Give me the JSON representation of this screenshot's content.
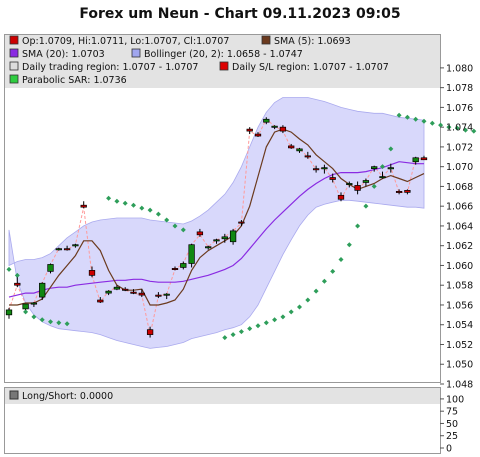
{
  "title": "Forex um Neun - Chart 09.11.2023 09:05",
  "legend": [
    {
      "text": "Op:1.0709, Hi:1.0711, Lo:1.0707, Cl:1.0707",
      "color": "#cc0000"
    },
    {
      "text": "SMA (5): 1.0693",
      "color": "#6b3a1e"
    },
    {
      "text": "SMA (20): 1.0703",
      "color": "#8a2be2"
    },
    {
      "text": "Bollinger (20, 2): 1.0658 - 1.0747",
      "color": "#a0a6ee"
    },
    {
      "text": "Daily trading region: 1.0707 - 1.0707",
      "color": "#dddddd"
    },
    {
      "text": "Daily S/L region: 1.0707 - 1.0707",
      "color": "#dd0000"
    },
    {
      "text": "Parabolic SAR: 1.0736",
      "color": "#2ecc40"
    }
  ],
  "lower_legend": {
    "text": "Long/Short: 0.0000",
    "color": "#777777"
  },
  "colors": {
    "up": "#118811",
    "down": "#cc0000",
    "sma5": "#6b3a1e",
    "sma20": "#8a2be2",
    "band_fill": "#d8d8fb",
    "band_line": "#aaaaee",
    "sar": "#2e9e5a",
    "connector": "#ff9a9a",
    "header_bg": "#e3e3e3",
    "frame": "#999999"
  },
  "chart_data": [
    {
      "type": "candlestick",
      "y_range": [
        1.048,
        1.081
      ],
      "y_ticks": [
        "1.048",
        "1.050",
        "1.052",
        "1.054",
        "1.056",
        "1.058",
        "1.060",
        "1.062",
        "1.064",
        "1.066",
        "1.068",
        "1.070",
        "1.072",
        "1.074",
        "1.076",
        "1.078",
        "1.080"
      ],
      "candles": [
        {
          "o": 1.055,
          "h": 1.0557,
          "l": 1.0546,
          "c": 1.0555
        },
        {
          "o": 1.0582,
          "h": 1.0588,
          "l": 1.0578,
          "c": 1.058
        },
        {
          "o": 1.0556,
          "h": 1.0561,
          "l": 1.0555,
          "c": 1.0561
        },
        {
          "o": 1.0561,
          "h": 1.0563,
          "l": 1.0558,
          "c": 1.0562
        },
        {
          "o": 1.0568,
          "h": 1.0583,
          "l": 1.0565,
          "c": 1.0582
        },
        {
          "o": 1.0594,
          "h": 1.0602,
          "l": 1.0592,
          "c": 1.0601
        },
        {
          "o": 1.0616,
          "h": 1.0618,
          "l": 1.0615,
          "c": 1.0617
        },
        {
          "o": 1.0617,
          "h": 1.062,
          "l": 1.0615,
          "c": 1.0616
        },
        {
          "o": 1.062,
          "h": 1.0622,
          "l": 1.0618,
          "c": 1.0621
        },
        {
          "o": 1.0661,
          "h": 1.0665,
          "l": 1.0658,
          "c": 1.0659
        },
        {
          "o": 1.0595,
          "h": 1.0599,
          "l": 1.0588,
          "c": 1.059
        },
        {
          "o": 1.0565,
          "h": 1.0568,
          "l": 1.0562,
          "c": 1.0563
        },
        {
          "o": 1.0572,
          "h": 1.0575,
          "l": 1.057,
          "c": 1.0574
        },
        {
          "o": 1.0576,
          "h": 1.058,
          "l": 1.0575,
          "c": 1.0578
        },
        {
          "o": 1.0576,
          "h": 1.0578,
          "l": 1.0574,
          "c": 1.0575
        },
        {
          "o": 1.0573,
          "h": 1.0576,
          "l": 1.0571,
          "c": 1.0572
        },
        {
          "o": 1.0572,
          "h": 1.0576,
          "l": 1.0568,
          "c": 1.057
        },
        {
          "o": 1.0535,
          "h": 1.0538,
          "l": 1.0527,
          "c": 1.053
        },
        {
          "o": 1.057,
          "h": 1.0573,
          "l": 1.0567,
          "c": 1.0569
        },
        {
          "o": 1.057,
          "h": 1.0572,
          "l": 1.0566,
          "c": 1.0571
        },
        {
          "o": 1.0597,
          "h": 1.0599,
          "l": 1.0595,
          "c": 1.0596
        },
        {
          "o": 1.0598,
          "h": 1.0604,
          "l": 1.0596,
          "c": 1.0602
        },
        {
          "o": 1.0602,
          "h": 1.0622,
          "l": 1.0598,
          "c": 1.0621
        },
        {
          "o": 1.0634,
          "h": 1.0637,
          "l": 1.0629,
          "c": 1.0631
        },
        {
          "o": 1.0618,
          "h": 1.062,
          "l": 1.0616,
          "c": 1.0619
        },
        {
          "o": 1.0625,
          "h": 1.0627,
          "l": 1.0622,
          "c": 1.0626
        },
        {
          "o": 1.0627,
          "h": 1.0632,
          "l": 1.0623,
          "c": 1.0629
        },
        {
          "o": 1.0624,
          "h": 1.0637,
          "l": 1.0621,
          "c": 1.0635
        },
        {
          "o": 1.0644,
          "h": 1.0646,
          "l": 1.064,
          "c": 1.0643
        },
        {
          "o": 1.0738,
          "h": 1.074,
          "l": 1.0733,
          "c": 1.0736
        },
        {
          "o": 1.0733,
          "h": 1.0735,
          "l": 1.073,
          "c": 1.0731
        },
        {
          "o": 1.0745,
          "h": 1.075,
          "l": 1.0743,
          "c": 1.0748
        },
        {
          "o": 1.074,
          "h": 1.0742,
          "l": 1.0738,
          "c": 1.0741
        },
        {
          "o": 1.074,
          "h": 1.0742,
          "l": 1.0734,
          "c": 1.0736
        },
        {
          "o": 1.0721,
          "h": 1.0723,
          "l": 1.0718,
          "c": 1.0719
        },
        {
          "o": 1.0716,
          "h": 1.0719,
          "l": 1.0714,
          "c": 1.0718
        },
        {
          "o": 1.0711,
          "h": 1.0715,
          "l": 1.0708,
          "c": 1.071
        },
        {
          "o": 1.0698,
          "h": 1.0701,
          "l": 1.0694,
          "c": 1.0697
        },
        {
          "o": 1.0698,
          "h": 1.0702,
          "l": 1.0693,
          "c": 1.0699
        },
        {
          "o": 1.0689,
          "h": 1.0693,
          "l": 1.0684,
          "c": 1.0687
        },
        {
          "o": 1.0671,
          "h": 1.0674,
          "l": 1.0665,
          "c": 1.0667
        },
        {
          "o": 1.0682,
          "h": 1.0685,
          "l": 1.0679,
          "c": 1.0683
        },
        {
          "o": 1.0681,
          "h": 1.0685,
          "l": 1.0672,
          "c": 1.0676
        },
        {
          "o": 1.0684,
          "h": 1.0688,
          "l": 1.068,
          "c": 1.0686
        },
        {
          "o": 1.0698,
          "h": 1.0701,
          "l": 1.0695,
          "c": 1.07
        },
        {
          "o": 1.069,
          "h": 1.0695,
          "l": 1.0688,
          "c": 1.069
        },
        {
          "o": 1.0698,
          "h": 1.0703,
          "l": 1.0694,
          "c": 1.0699
        },
        {
          "o": 1.0675,
          "h": 1.0677,
          "l": 1.0672,
          "c": 1.0674
        },
        {
          "o": 1.0676,
          "h": 1.0677,
          "l": 1.0672,
          "c": 1.0674
        },
        {
          "o": 1.0705,
          "h": 1.071,
          "l": 1.0702,
          "c": 1.0709
        },
        {
          "o": 1.0709,
          "h": 1.0711,
          "l": 1.0707,
          "c": 1.0707
        }
      ],
      "sma5": [
        1.056,
        1.056,
        1.0562,
        1.0562,
        1.0566,
        1.0578,
        1.059,
        1.06,
        1.061,
        1.0625,
        1.0625,
        1.0615,
        1.0595,
        1.058,
        1.0575,
        1.0575,
        1.0576,
        1.056,
        1.056,
        1.0562,
        1.0565,
        1.0576,
        1.0595,
        1.0608,
        1.0615,
        1.062,
        1.0625,
        1.063,
        1.064,
        1.066,
        1.069,
        1.072,
        1.0735,
        1.0738,
        1.0735,
        1.0728,
        1.0722,
        1.0712,
        1.0705,
        1.0698,
        1.0688,
        1.0682,
        1.0677,
        1.068,
        1.0683,
        1.0688,
        1.0691,
        1.0688,
        1.0685,
        1.0689,
        1.0693
      ],
      "sma20": [
        1.0568,
        1.057,
        1.0572,
        1.0572,
        1.0575,
        1.0577,
        1.0578,
        1.0578,
        1.058,
        1.0581,
        1.0582,
        1.0583,
        1.0584,
        1.0585,
        1.0585,
        1.0586,
        1.0586,
        1.0584,
        1.0583,
        1.0583,
        1.0583,
        1.0584,
        1.0586,
        1.0588,
        1.059,
        1.0593,
        1.0596,
        1.06,
        1.0607,
        1.0617,
        1.0627,
        1.0637,
        1.0646,
        1.0654,
        1.0662,
        1.067,
        1.0677,
        1.0683,
        1.0688,
        1.0692,
        1.0694,
        1.0694,
        1.0694,
        1.0695,
        1.0697,
        1.0699,
        1.0702,
        1.0705,
        1.0704,
        1.0703,
        1.0703
      ],
      "boll_upper": [
        1.06,
        1.0604,
        1.0606,
        1.0606,
        1.0608,
        1.0612,
        1.062,
        1.0628,
        1.0634,
        1.064,
        1.0644,
        1.0646,
        1.0647,
        1.0648,
        1.0648,
        1.0648,
        1.0648,
        1.0646,
        1.0645,
        1.0644,
        1.0643,
        1.0642,
        1.0645,
        1.065,
        1.0656,
        1.0664,
        1.0672,
        1.0684,
        1.07,
        1.072,
        1.074,
        1.0755,
        1.0765,
        1.077,
        1.077,
        1.077,
        1.077,
        1.0768,
        1.0766,
        1.0763,
        1.076,
        1.0758,
        1.0756,
        1.0755,
        1.0754,
        1.0754,
        1.0752,
        1.075,
        1.0749,
        1.0748,
        1.0747
      ],
      "boll_lower": [
        1.0636,
        1.0584,
        1.0562,
        1.055,
        1.0543,
        1.0539,
        1.0536,
        1.0535,
        1.0534,
        1.0533,
        1.0532,
        1.053,
        1.0527,
        1.0524,
        1.0522,
        1.052,
        1.0518,
        1.0516,
        1.0517,
        1.0518,
        1.052,
        1.0522,
        1.0526,
        1.0528,
        1.053,
        1.0532,
        1.0535,
        1.0537,
        1.054,
        1.0548,
        1.056,
        1.0577,
        1.0594,
        1.0611,
        1.0626,
        1.064,
        1.0651,
        1.0659,
        1.0662,
        1.0664,
        1.0666,
        1.0666,
        1.0665,
        1.0664,
        1.0663,
        1.0662,
        1.0661,
        1.066,
        1.0659,
        1.0659,
        1.0658
      ],
      "sar": [
        [
          0,
          1.0596
        ],
        [
          1,
          1.059
        ],
        [
          2,
          1.0553
        ],
        [
          3,
          1.0548
        ],
        [
          4,
          1.0545
        ],
        [
          5,
          1.0543
        ],
        [
          6,
          1.0542
        ],
        [
          7,
          1.0541
        ],
        [
          12,
          1.0668
        ],
        [
          13,
          1.0665
        ],
        [
          14,
          1.0663
        ],
        [
          15,
          1.0661
        ],
        [
          16,
          1.0658
        ],
        [
          17,
          1.0656
        ],
        [
          18,
          1.0652
        ],
        [
          19,
          1.0646
        ],
        [
          20,
          1.064
        ],
        [
          21,
          1.0636
        ],
        [
          26,
          1.0527
        ],
        [
          27,
          1.053
        ],
        [
          28,
          1.0533
        ],
        [
          29,
          1.0536
        ],
        [
          30,
          1.0539
        ],
        [
          31,
          1.0542
        ],
        [
          32,
          1.0545
        ],
        [
          33,
          1.0548
        ],
        [
          34,
          1.0553
        ],
        [
          35,
          1.0558
        ],
        [
          36,
          1.0565
        ],
        [
          37,
          1.0574
        ],
        [
          38,
          1.0584
        ],
        [
          39,
          1.0594
        ],
        [
          40,
          1.0606
        ],
        [
          41,
          1.0621
        ],
        [
          42,
          1.064
        ],
        [
          43,
          1.066
        ],
        [
          44,
          1.068
        ],
        [
          45,
          1.07
        ],
        [
          46,
          1.0718
        ],
        [
          47,
          1.0752
        ],
        [
          48,
          1.075
        ],
        [
          49,
          1.0748
        ],
        [
          50,
          1.0746
        ],
        [
          51,
          1.0744
        ],
        [
          52,
          1.0742
        ],
        [
          53,
          1.074
        ],
        [
          54,
          1.0739
        ],
        [
          55,
          1.0737
        ],
        [
          56,
          1.0736
        ]
      ],
      "sar_index_offset": [
        0,
        0
      ]
    },
    {
      "type": "line",
      "name_panel": "Long/Short",
      "y_ticks": [
        "0",
        "25",
        "50",
        "75",
        "100"
      ],
      "y_range": [
        0,
        110
      ],
      "values": []
    }
  ]
}
